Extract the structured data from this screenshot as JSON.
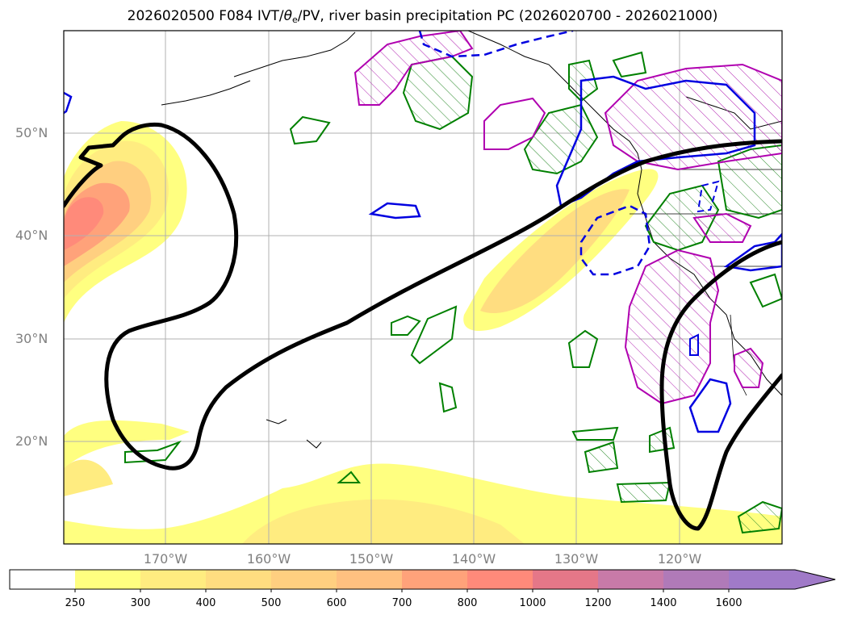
{
  "title": {
    "prefix": "2026020500 F084 IVT/",
    "theta": "θ",
    "sub": "e",
    "suffix": "/PV, river basin precipitation PC (2026020700 - 2026021000)"
  },
  "lat_labels": [
    "50°N",
    "40°N",
    "30°N",
    "20°N"
  ],
  "lon_labels": [
    "170°W",
    "160°W",
    "150°W",
    "140°W",
    "130°W",
    "120°W"
  ],
  "colorbar": {
    "labels": [
      "250",
      "300",
      "400",
      "500",
      "600",
      "700",
      "800",
      "1000",
      "1200",
      "1400",
      "1600"
    ],
    "colors": [
      "#ffffff",
      "#ffff80",
      "#ffec80",
      "#ffdd80",
      "#ffcf80",
      "#ffc080",
      "#ffa27a",
      "#ff8a7a",
      "#e57788",
      "#c87aa8",
      "#b07ab8",
      "#a07ac8"
    ]
  }
}
